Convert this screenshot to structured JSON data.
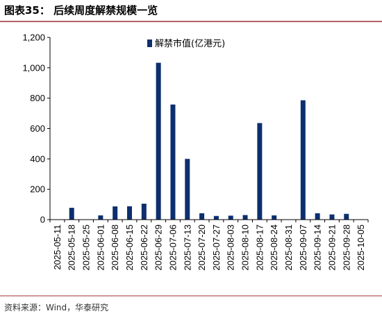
{
  "header": {
    "title": "图表35： 后续周度解禁规模一览"
  },
  "footer": {
    "source": "资料来源：Wind，华泰研究"
  },
  "colors": {
    "bar": "#0d2f6e",
    "rule": "#9b2c2c",
    "axis": "#000000"
  },
  "chart_data": {
    "type": "bar",
    "title": "",
    "xlabel": "",
    "ylabel": "",
    "ylim": [
      0,
      1200
    ],
    "ytick_step": 200,
    "yticks": [
      "0",
      "200",
      "400",
      "600",
      "800",
      "1,000",
      "1,200"
    ],
    "grid": false,
    "legend_position": "top-center",
    "categories": [
      "2025-05-11",
      "2025-05-18",
      "2025-05-25",
      "2025-06-01",
      "2025-06-08",
      "2025-06-15",
      "2025-06-22",
      "2025-06-29",
      "2025-07-06",
      "2025-07-13",
      "2025-07-20",
      "2025-07-27",
      "2025-08-03",
      "2025-08-10",
      "2025-08-17",
      "2025-08-24",
      "2025-08-31",
      "2025-09-07",
      "2025-09-14",
      "2025-09-21",
      "2025-09-28",
      "2025-10-05"
    ],
    "series": [
      {
        "name": "解禁市值(亿港元)",
        "values": [
          0,
          78,
          0,
          28,
          87,
          88,
          105,
          1033,
          758,
          400,
          42,
          24,
          26,
          30,
          636,
          28,
          0,
          786,
          42,
          34,
          38,
          0
        ]
      }
    ]
  }
}
